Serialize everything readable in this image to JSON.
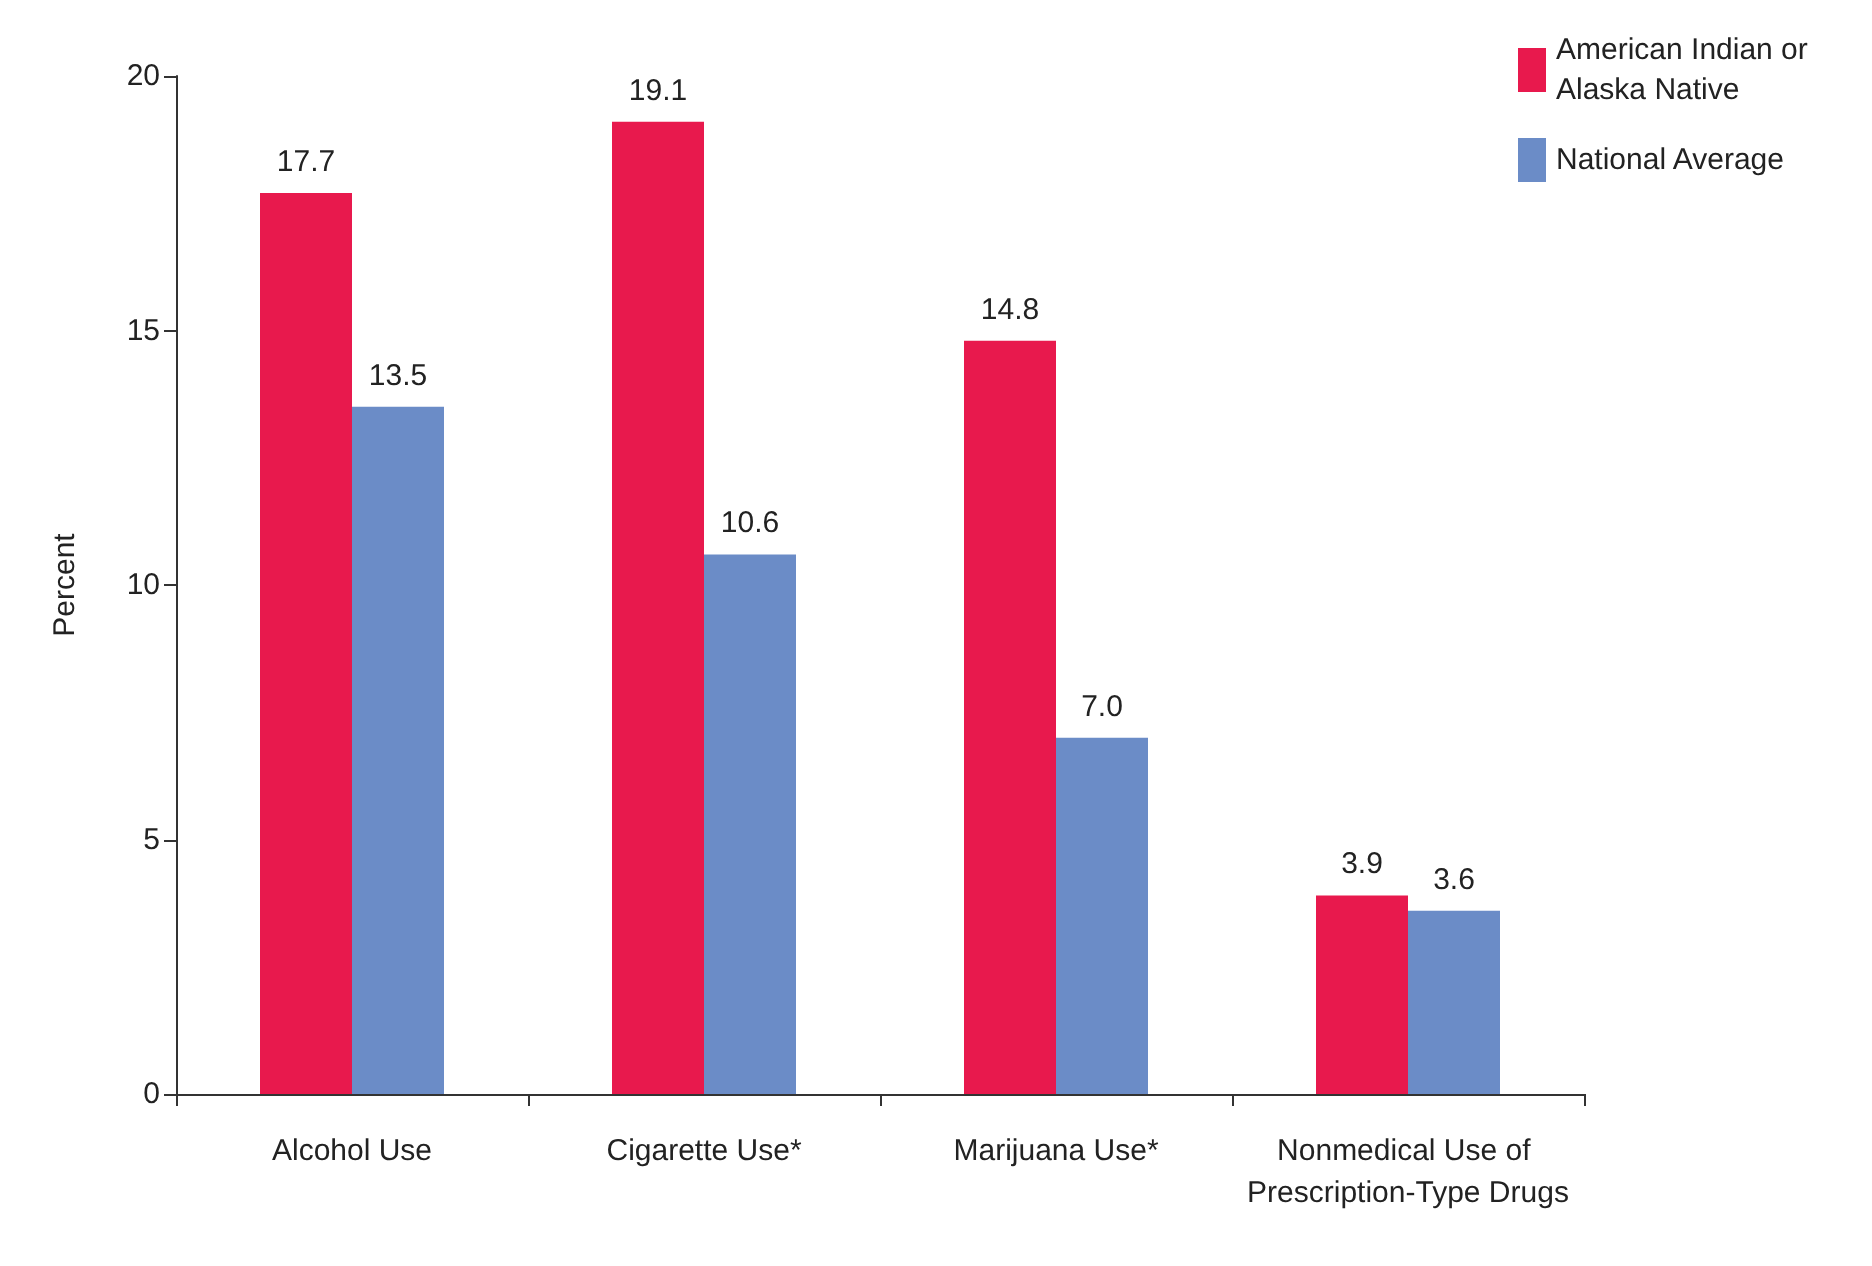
{
  "chart_data": {
    "type": "bar",
    "ylabel": "Percent",
    "categories": [
      "Alcohol Use",
      "Cigarette Use*",
      "Marijuana Use*",
      "Nonmedical Use of Prescription-Type Drugs"
    ],
    "series": [
      {
        "name": "American Indian or Alaska Native",
        "color": "#e8194d",
        "values": [
          17.7,
          19.1,
          14.8,
          3.9
        ],
        "value_labels": [
          "17.7",
          "19.1",
          "14.8",
          "3.9"
        ]
      },
      {
        "name": "National Average",
        "color": "#6b8cc7",
        "values": [
          13.5,
          10.6,
          7.0,
          3.6
        ],
        "value_labels": [
          "13.5",
          "10.6",
          "7.0",
          "3.6"
        ]
      }
    ],
    "ylim": [
      0,
      20
    ],
    "yticks": [
      0,
      5,
      10,
      15,
      20
    ],
    "grid": false,
    "legend": "top right"
  }
}
